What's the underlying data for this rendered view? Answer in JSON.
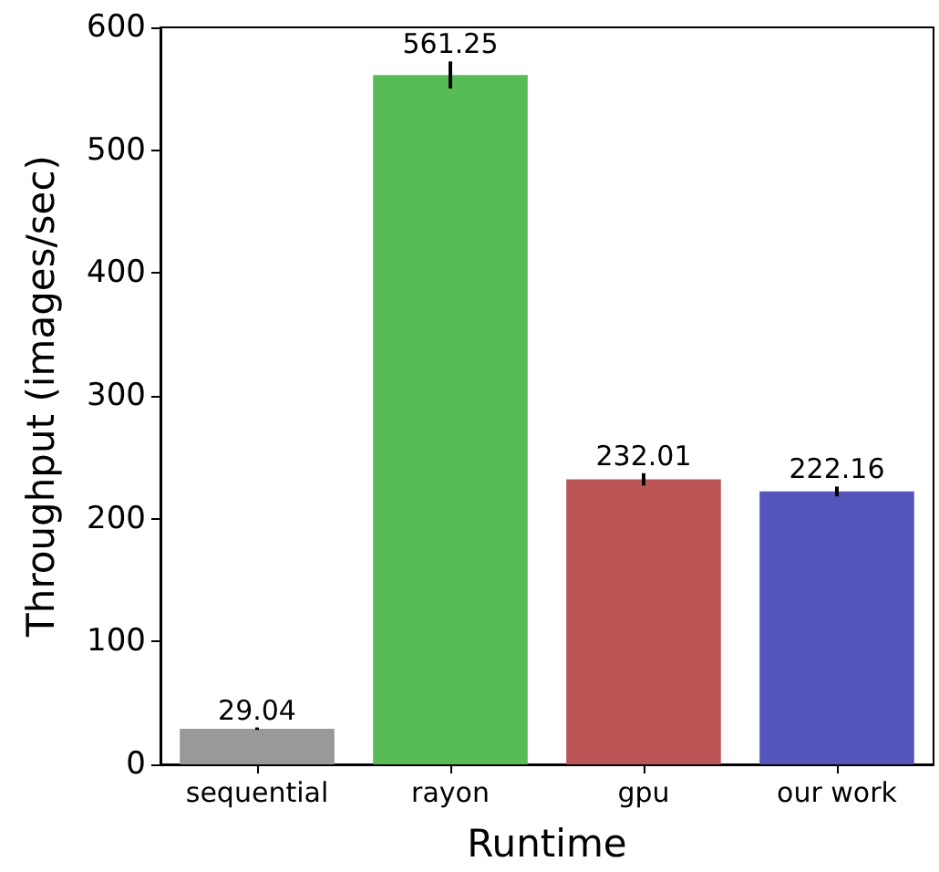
{
  "chart_data": {
    "type": "bar",
    "xlabel": "Runtime",
    "ylabel": "Throughput (images/sec)",
    "categories": [
      "sequential",
      "rayon",
      "gpu",
      "our work"
    ],
    "values": [
      29.04,
      561.25,
      232.01,
      222.16
    ],
    "colors": [
      "#999999",
      "#57bc55",
      "#bc5555",
      "#5555bc"
    ],
    "errors": [
      1,
      11,
      5,
      4
    ],
    "data_labels": true,
    "ylim": [
      0,
      600
    ],
    "yticks": [
      0,
      100,
      200,
      300,
      400,
      500,
      600
    ],
    "grid": false
  }
}
